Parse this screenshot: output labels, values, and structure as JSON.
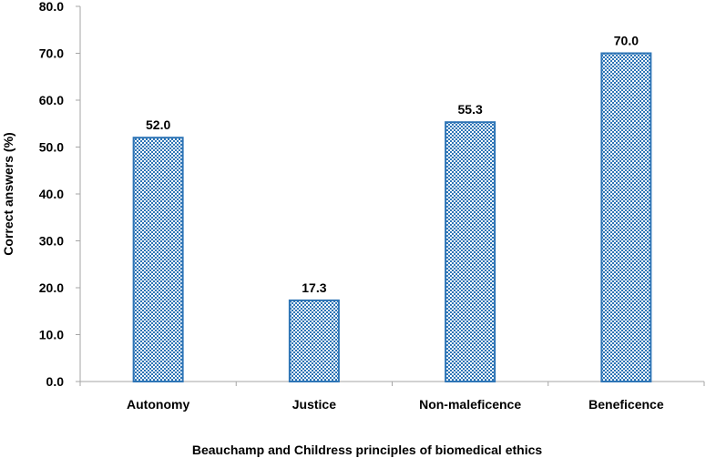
{
  "chart_data": {
    "type": "bar",
    "title": "",
    "xlabel": "Beauchamp and Childress principles of biomedical ethics",
    "ylabel": "Correct answers (%)",
    "categories": [
      "Autonomy",
      "Justice",
      "Non-maleficence",
      "Beneficence"
    ],
    "values": [
      52.0,
      17.3,
      55.3,
      70.0
    ],
    "value_labels": [
      "52.0",
      "17.3",
      "55.3",
      "70.0"
    ],
    "ylim": [
      0,
      80
    ],
    "yticks": [
      0,
      10,
      20,
      30,
      40,
      50,
      60,
      70,
      80
    ],
    "ytick_labels": [
      "0.0",
      "10.0",
      "20.0",
      "30.0",
      "40.0",
      "50.0",
      "60.0",
      "70.0",
      "80.0"
    ],
    "grid": false,
    "legend": "none",
    "colors": {
      "bar_border": "#2E75B6",
      "bar_pattern_fg": "#2E75B6",
      "bar_pattern_bg": "#FFFFFF",
      "axis": "#A6A6A6"
    }
  }
}
